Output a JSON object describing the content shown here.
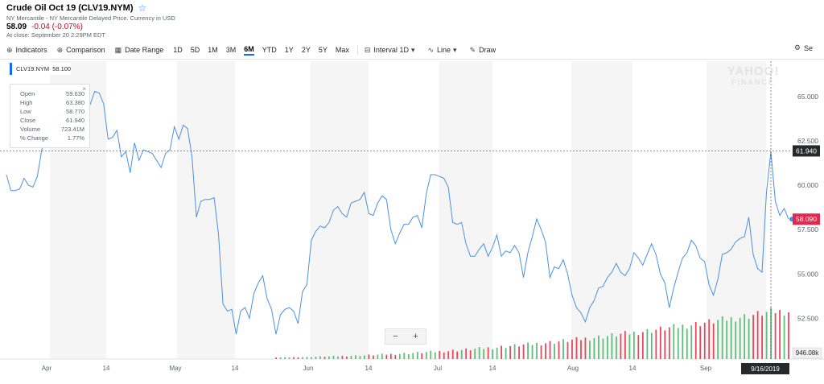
{
  "header": {
    "title": "Crude Oil Oct 19 (CLV19.NYM)",
    "subtitle": "NY Mercantile - NY Mercantile Delayed Price. Currency in USD",
    "price": "58.09",
    "change": "-0.04 (-0.07%)",
    "close_note": "At close: September 20 2:29PM EDT",
    "star_icon": "star-icon"
  },
  "toolbar": {
    "indicators": "Indicators",
    "comparison": "Comparison",
    "date_range": "Date Range",
    "ranges": [
      "1D",
      "5D",
      "1M",
      "3M",
      "6M",
      "YTD",
      "1Y",
      "2Y",
      "5Y",
      "Max"
    ],
    "active_range": "6M",
    "interval_label": "Interval",
    "interval_value": "1D",
    "line": "Line",
    "draw": "Draw",
    "settings": "Se"
  },
  "symbol_tag": {
    "symbol": "CLV19.NYM",
    "value": "58.100"
  },
  "tooltip": {
    "rows": [
      {
        "label": "Open",
        "value": "59.630"
      },
      {
        "label": "High",
        "value": "63.380"
      },
      {
        "label": "Low",
        "value": "58.770"
      },
      {
        "label": "Close",
        "value": "61.940"
      },
      {
        "label": "Volume",
        "value": "723.41M"
      },
      {
        "label": "% Change",
        "value": "1.77%"
      }
    ]
  },
  "watermark": {
    "line1": "YAHOO!",
    "line2": "FINANCE"
  },
  "zoom": {
    "minus": "−",
    "plus": "+"
  },
  "colors": {
    "line": "#4a90e2",
    "up": "#5cbf78",
    "down": "#e8475b",
    "crosshair_label": "#26282a",
    "last_price": "#e8264c"
  },
  "chart_data": {
    "type": "line",
    "ylim": [
      50.2,
      67
    ],
    "y_ticks": [
      52.5,
      55.0,
      57.5,
      60.0,
      62.5,
      65.0
    ],
    "y_tick_labels": [
      "52.500",
      "55.000",
      "57.500",
      "60.000",
      "62.500",
      "65.000"
    ],
    "x_tick_labels": [
      "Apr",
      "14",
      "May",
      "14",
      "Jun",
      "14",
      "Jul",
      "14",
      "Aug",
      "14",
      "Sep"
    ],
    "crosshair": {
      "date": "9/16/2019",
      "value": 61.94,
      "label": "61.940"
    },
    "last_price": {
      "value": 58.09,
      "label": "58.090"
    },
    "volume_label": "946.08k",
    "series": [
      {
        "values": [
          60.6,
          59.7,
          59.7,
          59.8,
          60.4,
          60.0,
          59.9,
          60.5,
          62.0,
          63.0,
          63.3,
          63.5,
          64.0,
          63.4,
          63.7,
          63.6,
          64.2,
          63.7,
          63.9,
          64.6,
          65.3,
          65.2,
          64.6,
          62.6,
          62.7,
          63.1,
          61.6,
          61.9,
          60.7,
          62.4,
          61.4,
          62.0,
          61.9,
          61.8,
          61.4,
          61.0,
          61.8,
          62.0,
          63.3,
          62.6,
          63.4,
          63.2,
          61.6,
          58.2,
          59.1,
          59.2,
          59.2,
          59.3,
          57.2,
          53.3,
          52.9,
          53.0,
          51.6,
          52.9,
          53.1,
          52.5,
          53.9,
          54.5,
          54.9,
          53.6,
          53.0,
          51.6,
          52.7,
          53.0,
          53.1,
          52.9,
          52.2,
          54.0,
          54.4,
          56.9,
          57.4,
          57.7,
          57.6,
          57.9,
          58.6,
          58.8,
          58.4,
          58.2,
          59.0,
          59.1,
          59.2,
          59.6,
          58.4,
          58.3,
          59.0,
          59.4,
          59.2,
          57.5,
          56.7,
          57.3,
          57.8,
          57.8,
          58.2,
          58.3,
          57.6,
          59.5,
          60.6,
          60.6,
          60.5,
          60.4,
          59.9,
          57.9,
          57.8,
          57.9,
          56.7,
          56.0,
          56.0,
          56.4,
          56.7,
          56.0,
          56.5,
          57.2,
          56.0,
          56.3,
          56.2,
          56.6,
          56.2,
          54.8,
          56.2,
          57.1,
          58.1,
          57.5,
          56.8,
          54.8,
          55.4,
          55.3,
          55.8,
          55.0,
          53.8,
          53.1,
          52.8,
          52.3,
          53.1,
          53.5,
          54.2,
          54.3,
          54.8,
          55.1,
          55.6,
          55.1,
          54.9,
          55.3,
          56.2,
          55.9,
          55.5,
          56.1,
          56.7,
          56.1,
          55.0,
          54.5,
          53.1,
          54.2,
          55.1,
          55.9,
          56.2,
          56.9,
          56.6,
          55.9,
          55.7,
          54.4,
          53.8,
          54.7,
          56.1,
          56.2,
          56.4,
          56.8,
          57.0,
          57.1,
          58.2,
          56.1,
          55.3,
          55.1,
          59.6,
          61.9,
          59.1,
          58.3,
          58.7,
          58.09
        ]
      }
    ]
  }
}
